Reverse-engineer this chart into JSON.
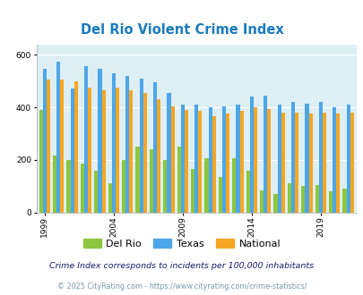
{
  "title": "Del Rio Violent Crime Index",
  "years": [
    1999,
    2000,
    2001,
    2002,
    2003,
    2004,
    2005,
    2006,
    2007,
    2008,
    2009,
    2010,
    2011,
    2012,
    2013,
    2014,
    2015,
    2016,
    2017,
    2018,
    2019,
    2020,
    2021
  ],
  "del_rio": [
    390,
    215,
    200,
    185,
    160,
    110,
    200,
    250,
    240,
    200,
    250,
    165,
    205,
    135,
    205,
    160,
    85,
    70,
    110,
    100,
    105,
    80,
    90
  ],
  "texas": [
    545,
    575,
    470,
    555,
    545,
    530,
    520,
    510,
    495,
    455,
    410,
    410,
    400,
    405,
    410,
    440,
    445,
    410,
    420,
    415,
    420,
    400,
    410
  ],
  "national": [
    505,
    505,
    500,
    475,
    465,
    475,
    465,
    455,
    430,
    405,
    390,
    385,
    365,
    375,
    385,
    400,
    395,
    380,
    380,
    375,
    380,
    375,
    380
  ],
  "color_del_rio": "#8dc63f",
  "color_texas": "#4da6e8",
  "color_national": "#f5a623",
  "title_color": "#1a7bbf",
  "plot_bg": "#ddeef5",
  "yticks": [
    0,
    200,
    400,
    600
  ],
  "xtick_years": [
    1999,
    2004,
    2009,
    2014,
    2019
  ],
  "footnote1": "Crime Index corresponds to incidents per 100,000 inhabitants",
  "footnote2": "© 2025 CityRating.com - https://www.cityrating.com/crime-statistics/",
  "legend_labels": [
    "Del Rio",
    "Texas",
    "National"
  ]
}
